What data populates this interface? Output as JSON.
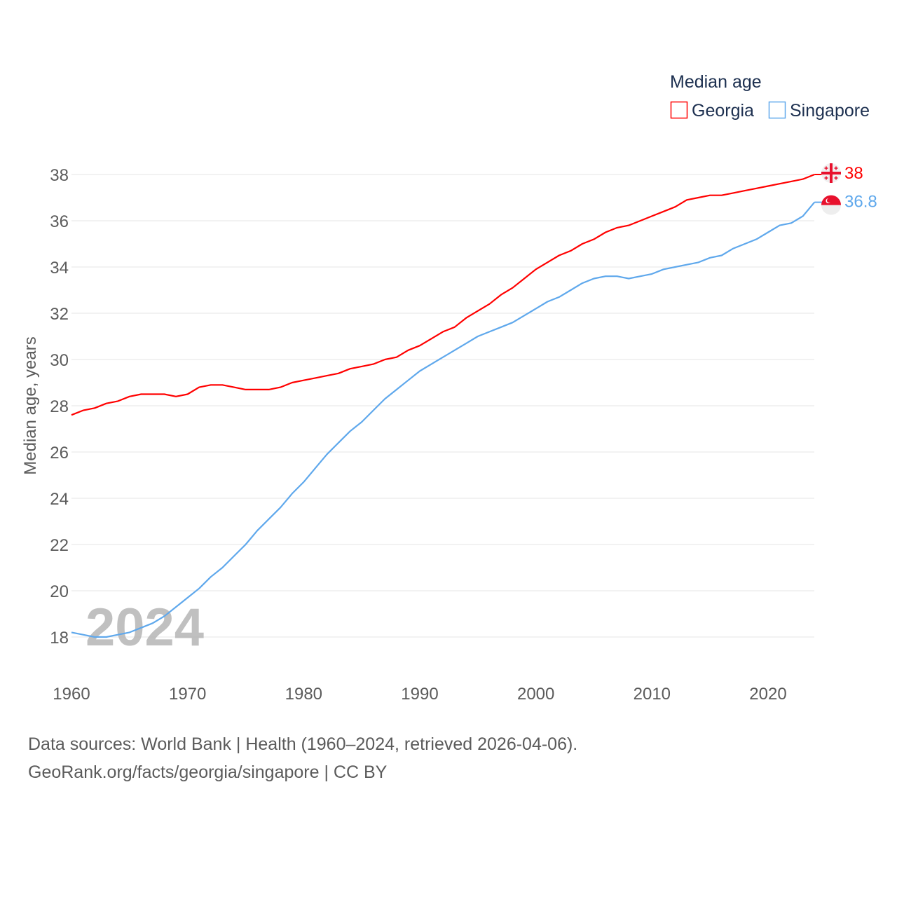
{
  "chart_data": {
    "type": "line",
    "title": "",
    "xlabel": "",
    "ylabel": "Median age, years",
    "xlim": [
      1960,
      2024
    ],
    "ylim": [
      17,
      39
    ],
    "yticks": [
      18,
      20,
      22,
      24,
      26,
      28,
      30,
      32,
      34,
      36,
      38
    ],
    "xticks": [
      1960,
      1970,
      1980,
      1990,
      2000,
      2010,
      2020
    ],
    "grid": true,
    "legend_title": "Median age",
    "legend_position": "top-right",
    "watermark_year": "2024",
    "x": [
      1960,
      1961,
      1962,
      1963,
      1964,
      1965,
      1966,
      1967,
      1968,
      1969,
      1970,
      1971,
      1972,
      1973,
      1974,
      1975,
      1976,
      1977,
      1978,
      1979,
      1980,
      1981,
      1982,
      1983,
      1984,
      1985,
      1986,
      1987,
      1988,
      1989,
      1990,
      1991,
      1992,
      1993,
      1994,
      1995,
      1996,
      1997,
      1998,
      1999,
      2000,
      2001,
      2002,
      2003,
      2004,
      2005,
      2006,
      2007,
      2008,
      2009,
      2010,
      2011,
      2012,
      2013,
      2014,
      2015,
      2016,
      2017,
      2018,
      2019,
      2020,
      2021,
      2022,
      2023,
      2024
    ],
    "series": [
      {
        "name": "Georgia",
        "color": "#ff0000",
        "end_label": "38",
        "flag": "georgia-flag",
        "values": [
          27.6,
          27.8,
          27.9,
          28.1,
          28.2,
          28.4,
          28.5,
          28.5,
          28.5,
          28.4,
          28.5,
          28.8,
          28.9,
          28.9,
          28.8,
          28.7,
          28.7,
          28.7,
          28.8,
          29.0,
          29.1,
          29.2,
          29.3,
          29.4,
          29.6,
          29.7,
          29.8,
          30.0,
          30.1,
          30.4,
          30.6,
          30.9,
          31.2,
          31.4,
          31.8,
          32.1,
          32.4,
          32.8,
          33.1,
          33.5,
          33.9,
          34.2,
          34.5,
          34.7,
          35.0,
          35.2,
          35.5,
          35.7,
          35.8,
          36.0,
          36.2,
          36.4,
          36.6,
          36.9,
          37.0,
          37.1,
          37.1,
          37.2,
          37.3,
          37.4,
          37.5,
          37.6,
          37.7,
          37.8,
          38.0
        ]
      },
      {
        "name": "Singapore",
        "color": "#5fa8ec",
        "end_label": "36.8",
        "flag": "singapore-flag",
        "values": [
          18.2,
          18.1,
          18.0,
          18.0,
          18.1,
          18.2,
          18.4,
          18.6,
          18.9,
          19.3,
          19.7,
          20.1,
          20.6,
          21.0,
          21.5,
          22.0,
          22.6,
          23.1,
          23.6,
          24.2,
          24.7,
          25.3,
          25.9,
          26.4,
          26.9,
          27.3,
          27.8,
          28.3,
          28.7,
          29.1,
          29.5,
          29.8,
          30.1,
          30.4,
          30.7,
          31.0,
          31.2,
          31.4,
          31.6,
          31.9,
          32.2,
          32.5,
          32.7,
          33.0,
          33.3,
          33.5,
          33.6,
          33.6,
          33.5,
          33.6,
          33.7,
          33.9,
          34.0,
          34.1,
          34.2,
          34.4,
          34.5,
          34.8,
          35.0,
          35.2,
          35.5,
          35.8,
          35.9,
          36.2,
          36.8
        ]
      }
    ]
  },
  "footer": {
    "line1": "Data sources: World Bank | Health (1960–2024, retrieved 2026-04-06).",
    "line2": "GeoRank.org/facts/georgia/singapore | CC BY"
  }
}
